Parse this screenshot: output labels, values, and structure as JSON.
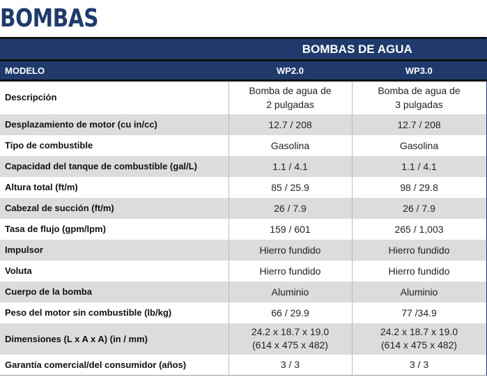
{
  "title": "BOMBAS",
  "table": {
    "group_header": "BOMBAS DE AGUA",
    "columns": [
      "MODELO",
      "WP2.0",
      "WP3.0"
    ],
    "rows": [
      {
        "label": "Descripción",
        "wp20": [
          "Bomba de agua de",
          "2 pulgadas"
        ],
        "wp30": [
          "Bomba de agua de",
          "3 pulgadas"
        ]
      },
      {
        "label": "Desplazamiento de motor (cu in/cc)",
        "wp20": "12.7 / 208",
        "wp30": "12.7 / 208"
      },
      {
        "label": "Tipo de combustible",
        "wp20": "Gasolina",
        "wp30": "Gasolina"
      },
      {
        "label": "Capacidad del tanque de combustible (gal/L)",
        "wp20": "1.1 / 4.1",
        "wp30": "1.1 / 4.1"
      },
      {
        "label": "Altura total (ft/m)",
        "wp20": "85 / 25.9",
        "wp30": "98 / 29.8"
      },
      {
        "label": "Cabezal de succión (ft/m)",
        "wp20": "26 / 7.9",
        "wp30": "26 / 7.9"
      },
      {
        "label": "Tasa de flujo (gpm/lpm)",
        "wp20": "159 / 601",
        "wp30": "265 / 1,003"
      },
      {
        "label": "Impulsor",
        "wp20": "Hierro fundido",
        "wp30": "Hierro fundido"
      },
      {
        "label": "Voluta",
        "wp20": "Hierro fundido",
        "wp30": "Hierro fundido"
      },
      {
        "label": "Cuerpo de la bomba",
        "wp20": "Aluminio",
        "wp30": "Aluminio"
      },
      {
        "label": "Peso del motor sin combustible (lb/kg)",
        "wp20": "66 / 29.9",
        "wp30": "77 /34.9"
      },
      {
        "label": "Dimensiones (L x A x A) (in / mm)",
        "wp20": [
          "24.2 x 18.7 x 19.0",
          "(614 x 475 x 482)"
        ],
        "wp30": [
          "24.2 x 18.7 x 19.0",
          "(614 x 475 x 482)"
        ]
      },
      {
        "label": "Garantía comercial/del consumidor (años)",
        "wp20": "3 / 3",
        "wp30": "3 / 3"
      }
    ]
  },
  "colors": {
    "header_bg": "#1f3a6b",
    "stripe": "#dcdcdc"
  }
}
